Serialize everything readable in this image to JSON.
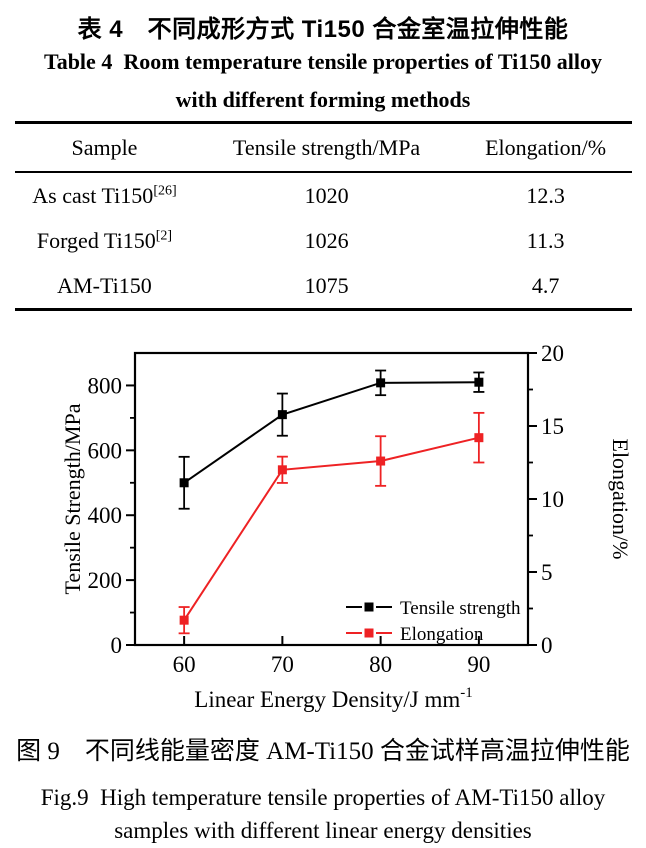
{
  "page": {
    "background": "#ffffff",
    "text_color": "#000000"
  },
  "table_section": {
    "title_cn": "表 4　不同成形方式 Ti150 合金室温拉伸性能",
    "title_en_line1": "Table 4  Room temperature tensile properties of Ti150 alloy",
    "title_en_line2": "with different forming methods",
    "columns": [
      "Sample",
      "Tensile strength/MPa",
      "Elongation/%"
    ],
    "rows": [
      {
        "sample": "As cast Ti150",
        "ref": "[26]",
        "tensile_strength": "1020",
        "elongation": "12.3"
      },
      {
        "sample": "Forged Ti150",
        "ref": "[2]",
        "tensile_strength": "1026",
        "elongation": "11.3"
      },
      {
        "sample": "AM-Ti150",
        "ref": "",
        "tensile_strength": "1075",
        "elongation": "4.7"
      }
    ]
  },
  "figure_section": {
    "caption_cn": "图 9　不同线能量密度 AM-Ti150 合金试样高温拉伸性能",
    "caption_en_line1": "Fig.9  High temperature tensile properties of AM-Ti150 alloy",
    "caption_en_line2": "samples with different linear energy densities"
  },
  "chart_data": {
    "type": "line",
    "title": "",
    "x": [
      60,
      70,
      80,
      90
    ],
    "x_axis": {
      "label": "Linear Energy Density/J mm",
      "label_superscript": "-1",
      "min": 55,
      "max": 95,
      "ticks": [
        60,
        70,
        80,
        90
      ]
    },
    "left_axis": {
      "label": "Tensile Strength/MPa",
      "min": 0,
      "max": 900,
      "ticks": [
        0,
        200,
        400,
        600,
        800
      ],
      "minor_ticks": [
        100,
        300,
        500,
        700
      ]
    },
    "right_axis": {
      "label": "Elongation/%",
      "min": 0,
      "max": 20,
      "ticks": [
        0,
        5,
        10,
        15,
        20
      ],
      "minor_ticks": [
        2.5,
        7.5,
        12.5,
        17.5
      ]
    },
    "series": [
      {
        "name": "Tensile strength",
        "color": "#000000",
        "axis": "left",
        "marker": "square",
        "values": [
          500,
          710,
          808,
          810
        ],
        "errors": [
          80,
          65,
          38,
          30
        ]
      },
      {
        "name": "Elongation",
        "color": "#ee2224",
        "axis": "right",
        "marker": "square",
        "values": [
          1.7,
          12.0,
          12.6,
          14.2
        ],
        "errors": [
          0.9,
          0.9,
          1.7,
          1.7
        ]
      }
    ],
    "grid": false,
    "legend_position": "bottom-right"
  }
}
